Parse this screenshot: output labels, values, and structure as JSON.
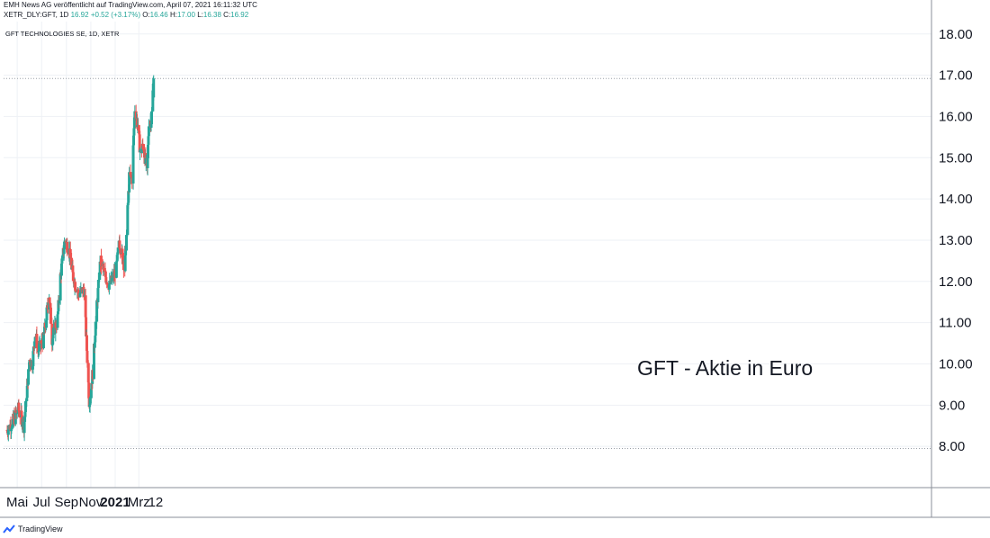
{
  "header": {
    "publisher": "EMH News AG veröffentlicht auf TradingView.com, April 07, 2021 16:11:32 UTC",
    "symbol_line": "XETR_DLY:GFT, 1D",
    "price": "16.92",
    "change": "+0.52 (+3.17%)",
    "o_label": "O:",
    "o_value": "16.46",
    "h_label": "H:",
    "h_value": "17.00",
    "l_label": "L:",
    "l_value": "16.38",
    "c_label": "C:",
    "c_value": "16.92"
  },
  "chart_title": "GFT TECHNOLOGIES SE, 1D, XETR",
  "annotation": "GFT - Aktie in Euro",
  "footer": {
    "brand": "TradingView",
    "logo_icon": "tradingview-logo-icon"
  },
  "colors": {
    "up": "#26a69a",
    "down": "#ef5350",
    "grid": "#eef1f5",
    "axis": "#8a8f99"
  },
  "chart_data": {
    "type": "candlestick",
    "title": "GFT TECHNOLOGIES SE, 1D, XETR",
    "xlabel": "",
    "ylabel": "",
    "y_ticks": [
      "18.00",
      "17.00",
      "16.00",
      "15.00",
      "14.00",
      "13.00",
      "12.00",
      "11.00",
      "10.00",
      "9.00",
      "8.00"
    ],
    "ylim": [
      7.0,
      18.3
    ],
    "x_ticks": [
      "Mai",
      "Jul",
      "Sep",
      "Nov",
      "2021",
      "Mrz",
      "12"
    ],
    "x_tick_bold": [
      false,
      false,
      false,
      false,
      true,
      false,
      false
    ],
    "x_tick_dates": [
      "2020-05-01",
      "2020-07-01",
      "2020-09-01",
      "2020-11-01",
      "2021-01-01",
      "2021-03-01",
      "2021-04-12"
    ],
    "date_range": [
      "2020-04-06",
      "2021-04-07"
    ],
    "reference_lines": [
      16.92,
      7.95
    ],
    "grid": true,
    "close_path": [
      [
        "2020-04-06",
        8.4
      ],
      [
        "2020-04-20",
        8.6
      ],
      [
        "2020-05-04",
        8.9
      ],
      [
        "2020-05-18",
        8.5
      ],
      [
        "2020-06-01",
        10.1
      ],
      [
        "2020-06-08",
        10.0
      ],
      [
        "2020-06-15",
        10.8
      ],
      [
        "2020-06-22",
        10.3
      ],
      [
        "2020-07-06",
        10.6
      ],
      [
        "2020-07-20",
        11.7
      ],
      [
        "2020-07-27",
        10.6
      ],
      [
        "2020-08-10",
        11.1
      ],
      [
        "2020-08-17",
        12.1
      ],
      [
        "2020-08-28",
        13.0
      ],
      [
        "2020-09-07",
        12.8
      ],
      [
        "2020-09-18",
        12.1
      ],
      [
        "2020-10-01",
        11.7
      ],
      [
        "2020-10-15",
        11.8
      ],
      [
        "2020-10-28",
        9.1
      ],
      [
        "2020-11-06",
        9.8
      ],
      [
        "2020-11-13",
        11.0
      ],
      [
        "2020-11-25",
        12.5
      ],
      [
        "2020-12-04",
        12.2
      ],
      [
        "2020-12-18",
        11.9
      ],
      [
        "2021-01-04",
        12.3
      ],
      [
        "2021-01-11",
        13.0
      ],
      [
        "2021-01-25",
        12.3
      ],
      [
        "2021-02-05",
        14.5
      ],
      [
        "2021-02-12",
        14.5
      ],
      [
        "2021-02-19",
        16.2
      ],
      [
        "2021-02-26",
        15.8
      ],
      [
        "2021-03-05",
        15.1
      ],
      [
        "2021-03-12",
        15.3
      ],
      [
        "2021-03-22",
        14.6
      ],
      [
        "2021-03-26",
        15.9
      ],
      [
        "2021-04-01",
        15.9
      ],
      [
        "2021-04-07",
        16.92
      ]
    ],
    "last_candle": {
      "date": "2021-04-07",
      "open": 16.46,
      "high": 17.0,
      "low": 16.38,
      "close": 16.92
    }
  }
}
